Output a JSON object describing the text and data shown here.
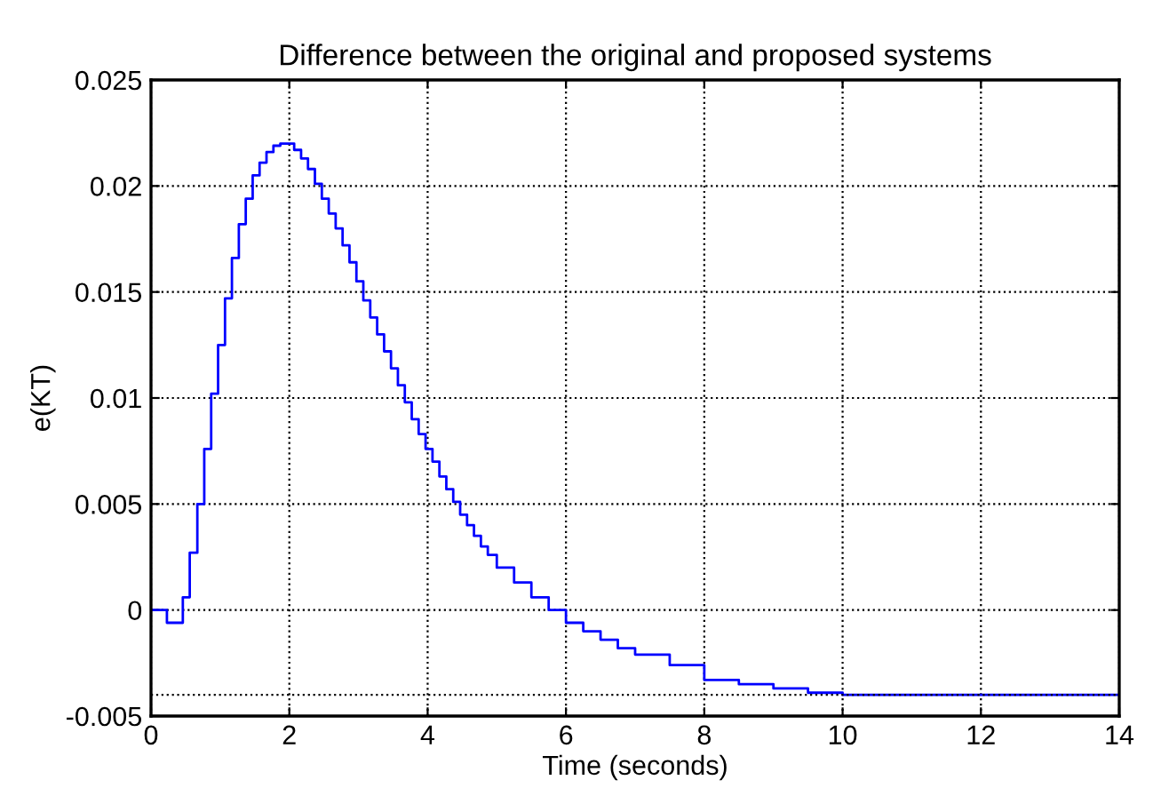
{
  "chart_data": {
    "type": "step",
    "title": "Difference between the original and proposed systems",
    "xlabel": "Time (seconds)",
    "ylabel": "e(KT)",
    "x": [
      0,
      0.23,
      0.46,
      0.56,
      0.67,
      0.77,
      0.87,
      0.97,
      1.07,
      1.17,
      1.27,
      1.37,
      1.47,
      1.57,
      1.67,
      1.77,
      1.87,
      1.97,
      2.07,
      2.17,
      2.27,
      2.37,
      2.47,
      2.57,
      2.67,
      2.77,
      2.87,
      2.97,
      3.07,
      3.17,
      3.27,
      3.37,
      3.47,
      3.57,
      3.67,
      3.77,
      3.87,
      3.97,
      4.07,
      4.17,
      4.27,
      4.37,
      4.47,
      4.57,
      4.67,
      4.77,
      4.87,
      5.0,
      5.25,
      5.5,
      5.75,
      6.0,
      6.25,
      6.5,
      6.75,
      7.0,
      7.5,
      8.0,
      8.5,
      9.0,
      9.5,
      10.0,
      11.2,
      14
    ],
    "series": [
      {
        "color": "#0000ff",
        "values": [
          0,
          -0.0006,
          0.0006,
          0.0027,
          0.005,
          0.0076,
          0.0102,
          0.0125,
          0.0147,
          0.0166,
          0.0182,
          0.0194,
          0.0205,
          0.0211,
          0.0216,
          0.0219,
          0.022,
          0.022,
          0.0217,
          0.0213,
          0.0208,
          0.0201,
          0.0194,
          0.0187,
          0.018,
          0.0172,
          0.0164,
          0.0155,
          0.0146,
          0.0138,
          0.013,
          0.0122,
          0.0114,
          0.0106,
          0.0098,
          0.009,
          0.0083,
          0.0076,
          0.007,
          0.0063,
          0.0057,
          0.0051,
          0.0045,
          0.004,
          0.0035,
          0.003,
          0.0026,
          0.002,
          0.0013,
          0.0006,
          0.0,
          -0.0006,
          -0.001,
          -0.0014,
          -0.0018,
          -0.0021,
          -0.0026,
          -0.0033,
          -0.0035,
          -0.0037,
          -0.0039,
          -0.004,
          -0.004,
          -0.004
        ]
      }
    ],
    "xlim": [
      0,
      14
    ],
    "xticks": [
      0,
      2,
      4,
      6,
      8,
      10,
      12,
      14
    ],
    "ylim": [
      -0.005,
      0.025
    ],
    "yticks": [
      -0.005,
      0,
      0.005,
      0.01,
      0.015,
      0.02,
      0.025
    ],
    "ref_lines": [
      {
        "axis": "y",
        "value": -0.004,
        "color": "#000000",
        "line_style": "dotted"
      }
    ],
    "grid": true,
    "marker": "none",
    "line_style": "solid"
  }
}
